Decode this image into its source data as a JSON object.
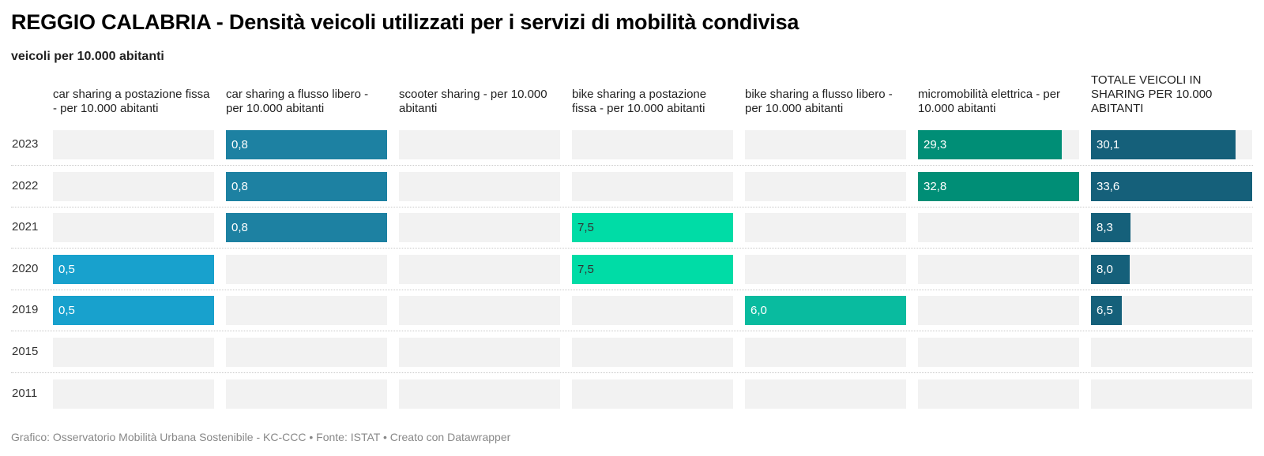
{
  "title": "REGGIO CALABRIA - Densità veicoli utilizzati per i servizi di mobilità condivisa",
  "subtitle": "veicoli per 10.000 abitanti",
  "footer": "Grafico: Osservatorio Mobilità Urbana Sostenibile - KC-CCC • Fonte: ISTAT • Creato con Datawrapper",
  "chart_data": {
    "type": "bar",
    "orientation": "horizontal",
    "layout": "small multiples (one column per series)",
    "categories": [
      "2023",
      "2022",
      "2021",
      "2020",
      "2019",
      "2015",
      "2011"
    ],
    "series": [
      {
        "name": "car sharing a postazione fissa - per 10.000 abitanti",
        "color": "#18a1cd",
        "values": [
          null,
          null,
          null,
          0.5,
          0.5,
          null,
          null
        ],
        "labels": [
          "",
          "",
          "",
          "0,5",
          "0,5",
          "",
          ""
        ],
        "max": 0.5
      },
      {
        "name": "car sharing a flusso libero - per 10.000 abitanti",
        "color": "#1d81a2",
        "values": [
          0.8,
          0.8,
          0.8,
          null,
          null,
          null,
          null
        ],
        "labels": [
          "0,8",
          "0,8",
          "0,8",
          "",
          "",
          "",
          ""
        ],
        "max": 0.8
      },
      {
        "name": "scooter sharing - per 10.000 abitanti",
        "color": "#18a1cd",
        "values": [
          null,
          null,
          null,
          null,
          null,
          null,
          null
        ],
        "labels": [
          "",
          "",
          "",
          "",
          "",
          "",
          ""
        ],
        "max": 1
      },
      {
        "name": "bike sharing a postazione fissa - per 10.000 abitanti",
        "color": "#00dca6",
        "values": [
          null,
          null,
          7.5,
          7.5,
          null,
          null,
          null
        ],
        "labels": [
          "",
          "",
          "7,5",
          "7,5",
          "",
          "",
          ""
        ],
        "max": 7.5,
        "label_dark": true
      },
      {
        "name": "bike sharing a flusso libero - per 10.000 abitanti",
        "color": "#09bb9f",
        "values": [
          null,
          null,
          null,
          null,
          6.0,
          null,
          null
        ],
        "labels": [
          "",
          "",
          "",
          "",
          "6,0",
          "",
          ""
        ],
        "max": 6.0
      },
      {
        "name": "micromobilità elettrica - per 10.000 abitanti",
        "color": "#008e76",
        "values": [
          29.3,
          32.8,
          null,
          null,
          null,
          null,
          null
        ],
        "labels": [
          "29,3",
          "32,8",
          "",
          "",
          "",
          "",
          ""
        ],
        "max": 32.8
      },
      {
        "name": "TOTALE VEICOLI IN SHARING PER 10.000 ABITANTI",
        "color": "#15607a",
        "values": [
          30.1,
          33.6,
          8.3,
          8.0,
          6.5,
          null,
          null
        ],
        "labels": [
          "30,1",
          "33,6",
          "8,3",
          "8,0",
          "6,5",
          "",
          ""
        ],
        "max": 33.6
      }
    ]
  }
}
